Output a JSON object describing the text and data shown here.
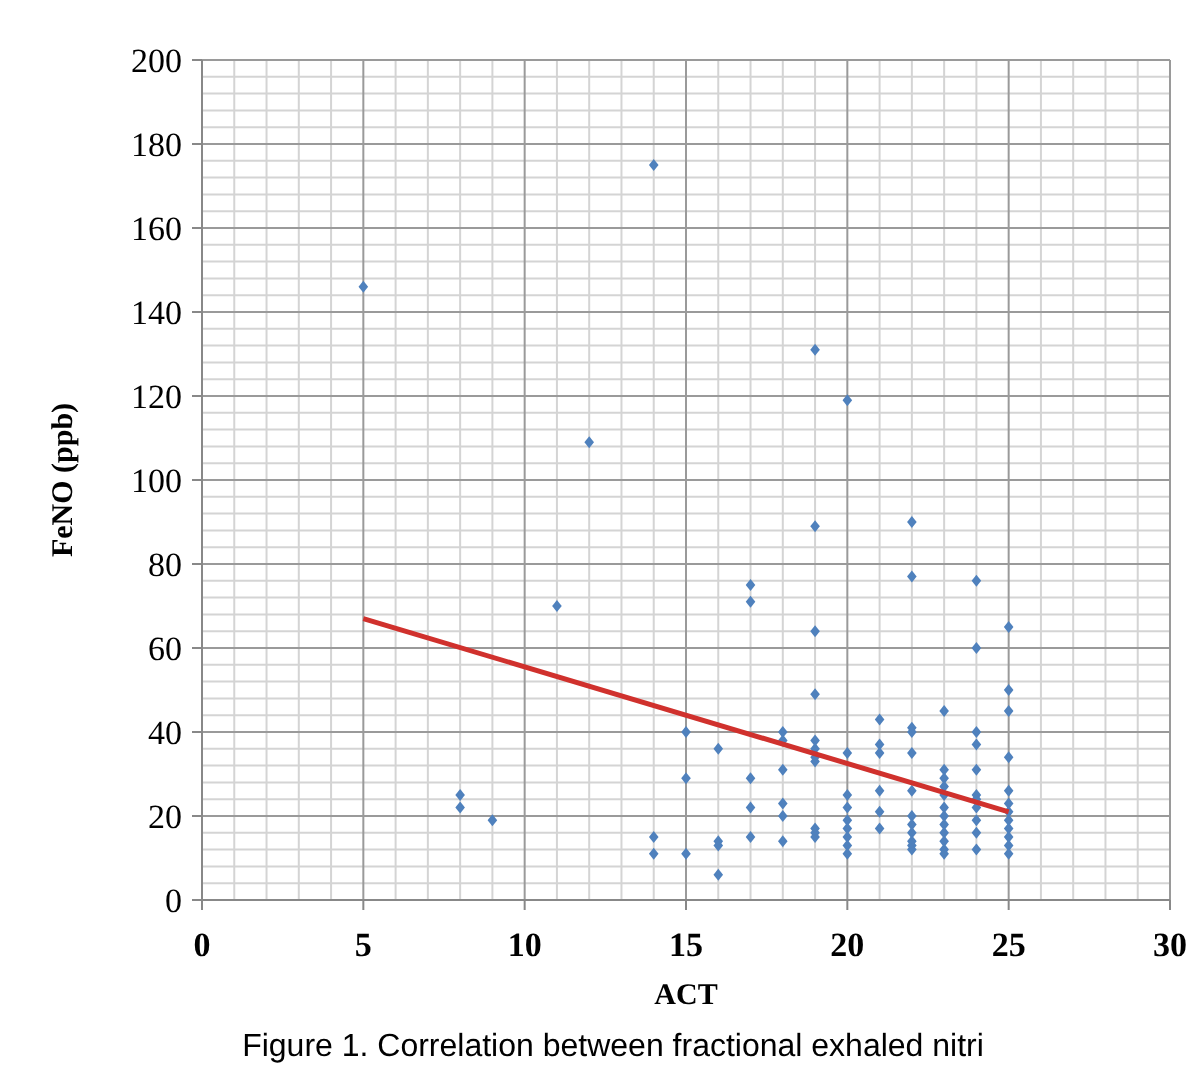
{
  "chart_data": {
    "type": "scatter",
    "xlabel": "ACT",
    "ylabel": "FeNO (ppb)",
    "annotations": [
      "Figure 1. Correlation between fractional exhaled nitri"
    ],
    "xlim": [
      0,
      30
    ],
    "ylim": [
      0,
      200
    ],
    "xticks": [
      0,
      5,
      10,
      15,
      20,
      25,
      30
    ],
    "yticks": [
      0,
      20,
      40,
      60,
      80,
      100,
      120,
      140,
      160,
      180,
      200
    ],
    "grid": true,
    "marker": "diamond",
    "series": [
      {
        "color": "#4f81bd",
        "x": [
          5,
          8,
          8,
          9,
          11,
          12,
          14,
          14,
          14,
          15,
          15,
          15,
          16,
          16,
          16,
          16,
          17,
          17,
          17,
          17,
          17,
          18,
          18,
          18,
          18,
          18,
          18,
          19,
          19,
          19,
          19,
          19,
          19,
          19,
          19,
          19,
          19,
          19,
          20,
          20,
          20,
          20,
          20,
          20,
          20,
          20,
          20,
          21,
          21,
          21,
          21,
          21,
          21,
          22,
          22,
          22,
          22,
          22,
          22,
          22,
          22,
          22,
          22,
          22,
          22,
          23,
          23,
          23,
          23,
          23,
          23,
          23,
          23,
          23,
          23,
          23,
          23,
          24,
          24,
          24,
          24,
          24,
          24,
          24,
          24,
          24,
          24,
          24,
          25,
          25,
          25,
          25,
          25,
          25,
          25,
          25,
          25,
          25,
          25,
          25
        ],
        "values": [
          146,
          25,
          22,
          19,
          70,
          109,
          175,
          15,
          11,
          40,
          29,
          11,
          36,
          14,
          13,
          6,
          75,
          71,
          29,
          22,
          15,
          40,
          38,
          31,
          23,
          20,
          14,
          131,
          89,
          64,
          49,
          38,
          36,
          34,
          33,
          17,
          16,
          15,
          119,
          35,
          25,
          22,
          19,
          17,
          15,
          13,
          11,
          43,
          37,
          35,
          26,
          21,
          17,
          90,
          77,
          41,
          40,
          35,
          26,
          20,
          18,
          16,
          14,
          13,
          12,
          45,
          31,
          29,
          27,
          25,
          22,
          20,
          18,
          16,
          14,
          12,
          11,
          76,
          60,
          40,
          37,
          31,
          25,
          24,
          22,
          19,
          16,
          12,
          65,
          50,
          45,
          34,
          26,
          23,
          21,
          19,
          17,
          15,
          13,
          11
        ]
      },
      {
        "type": "line",
        "color": "#d0312d",
        "x": [
          5,
          25
        ],
        "values": [
          67,
          21
        ],
        "marker": "none"
      }
    ]
  }
}
